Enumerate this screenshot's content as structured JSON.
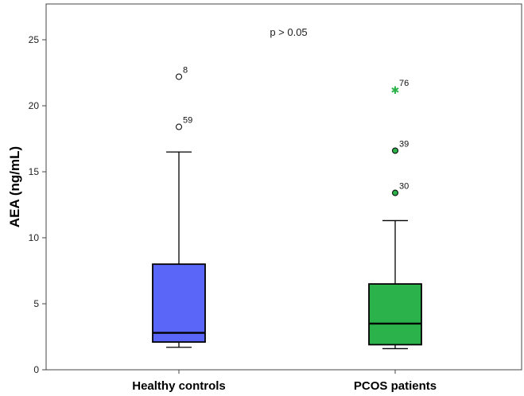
{
  "chart_data": {
    "type": "boxplot",
    "ylabel": "AEA (ng/mL)",
    "xlabel": "",
    "annotation": "p > 0.05",
    "ylim": [
      0,
      27.5
    ],
    "yticks": [
      0,
      5,
      10,
      15,
      20,
      25
    ],
    "grid": false,
    "categories": [
      "Healthy controls",
      "PCOS patients"
    ],
    "boxes": [
      {
        "category": "Healthy controls",
        "color": "#5a66f8",
        "whisker_low": 1.7,
        "q1": 2.1,
        "median": 2.8,
        "q3": 8.0,
        "whisker_high": 16.5,
        "outliers": [
          {
            "label": "8",
            "value": 22.2,
            "kind": "circle"
          },
          {
            "label": "59",
            "value": 18.4,
            "kind": "circle"
          }
        ]
      },
      {
        "category": "PCOS patients",
        "color": "#2bb24a",
        "whisker_low": 1.6,
        "q1": 1.9,
        "median": 3.5,
        "q3": 6.5,
        "whisker_high": 11.3,
        "outliers": [
          {
            "label": "76",
            "value": 21.2,
            "kind": "star"
          },
          {
            "label": "39",
            "value": 16.6,
            "kind": "circle"
          },
          {
            "label": "30",
            "value": 13.4,
            "kind": "circle"
          }
        ]
      }
    ]
  }
}
